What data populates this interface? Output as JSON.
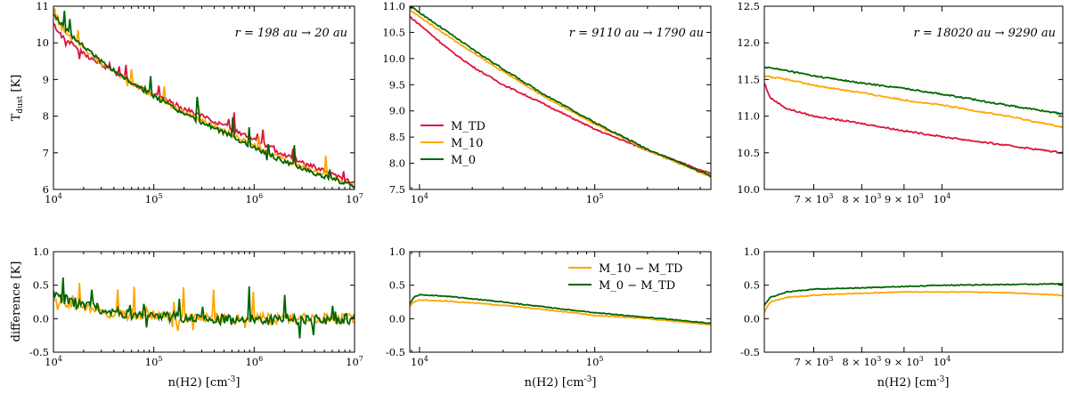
{
  "figure": {
    "y_label_top": "T_dust [K]",
    "y_label_bottom": "difference [K]",
    "x_label": "n(H2) [cm^-3]",
    "colors": {
      "M_TD": "#dc143c",
      "M_10": "#ffa500",
      "M_0": "#006400"
    }
  },
  "chart_data": [
    {
      "id": "top-left",
      "type": "line",
      "xscale": "log",
      "xlim": [
        10000,
        10000000
      ],
      "ylim": [
        6,
        11
      ],
      "xticks": [
        {
          "v": 10000,
          "label": "10^4"
        },
        {
          "v": 100000,
          "label": "10^5"
        },
        {
          "v": 1000000,
          "label": "10^6"
        },
        {
          "v": 10000000,
          "label": "10^7"
        }
      ],
      "yticks": [
        6,
        7,
        8,
        9,
        10,
        11
      ],
      "annotation": "r = 198 au → 20 au",
      "series": [
        {
          "name": "M_TD",
          "color": "#dc143c",
          "x": [
            10000,
            12000,
            15000,
            20000,
            30000,
            50000,
            80000,
            100000,
            200000,
            500000,
            1000000,
            2000000,
            5000000,
            10000000
          ],
          "y": [
            10.5,
            10.2,
            10.0,
            9.7,
            9.4,
            9.05,
            8.75,
            8.6,
            8.2,
            7.75,
            7.35,
            6.95,
            6.5,
            6.15
          ]
        },
        {
          "name": "M_10",
          "color": "#ffa500",
          "x": [
            10000,
            12000,
            15000,
            20000,
            30000,
            50000,
            80000,
            100000,
            200000,
            500000,
            1000000,
            2000000,
            5000000,
            10000000
          ],
          "y": [
            10.7,
            10.4,
            10.15,
            9.85,
            9.45,
            9.05,
            8.7,
            8.55,
            8.1,
            7.6,
            7.2,
            6.8,
            6.4,
            6.1
          ]
        },
        {
          "name": "M_0",
          "color": "#006400",
          "x": [
            10000,
            12000,
            15000,
            20000,
            30000,
            50000,
            80000,
            100000,
            200000,
            500000,
            1000000,
            2000000,
            5000000,
            10000000
          ],
          "y": [
            10.8,
            10.5,
            10.2,
            9.9,
            9.5,
            9.05,
            8.7,
            8.55,
            8.05,
            7.55,
            7.15,
            6.75,
            6.35,
            6.1
          ]
        }
      ]
    },
    {
      "id": "top-middle",
      "type": "line",
      "xscale": "log",
      "xlim": [
        8800,
        460000
      ],
      "ylim": [
        7.5,
        11
      ],
      "xticks": [
        {
          "v": 10000,
          "label": "10^4"
        },
        {
          "v": 100000,
          "label": "10^5"
        }
      ],
      "yticks": [
        7.5,
        8.0,
        8.5,
        9.0,
        9.5,
        10.0,
        10.5,
        11.0
      ],
      "annotation": "r = 9110 au → 1790 au",
      "legend": {
        "position": "lower-left",
        "entries": [
          "M_TD",
          "M_10",
          "M_0"
        ]
      },
      "series": [
        {
          "name": "M_TD",
          "color": "#dc143c",
          "x": [
            8800,
            10000,
            15000,
            20000,
            30000,
            50000,
            100000,
            200000,
            460000
          ],
          "y": [
            10.8,
            10.65,
            10.15,
            9.85,
            9.5,
            9.15,
            8.65,
            8.25,
            7.8
          ]
        },
        {
          "name": "M_10",
          "color": "#ffa500",
          "x": [
            8800,
            10000,
            15000,
            20000,
            30000,
            50000,
            100000,
            200000,
            460000
          ],
          "y": [
            10.93,
            10.8,
            10.4,
            10.12,
            9.75,
            9.3,
            8.75,
            8.25,
            7.74
          ]
        },
        {
          "name": "M_0",
          "color": "#006400",
          "x": [
            8800,
            10000,
            15000,
            20000,
            30000,
            50000,
            100000,
            200000,
            460000
          ],
          "y": [
            11.0,
            10.88,
            10.47,
            10.18,
            9.8,
            9.34,
            8.78,
            8.27,
            7.76
          ]
        }
      ]
    },
    {
      "id": "top-right",
      "type": "line",
      "xscale": "log",
      "xlim": [
        6100,
        14000
      ],
      "ylim": [
        10,
        12.5
      ],
      "xticks": [
        {
          "v": 7000,
          "label": "7 × 10^3"
        },
        {
          "v": 8000,
          "label": "8 × 10^3"
        },
        {
          "v": 9000,
          "label": "9 × 10^3"
        },
        {
          "v": 10000,
          "label": "10^4"
        }
      ],
      "yticks": [
        10.0,
        10.5,
        11.0,
        11.5,
        12.0,
        12.5
      ],
      "annotation": "r = 18020 au → 9290 au",
      "series": [
        {
          "name": "M_TD",
          "color": "#dc143c",
          "x": [
            6100,
            6200,
            6500,
            7000,
            8000,
            9000,
            10000,
            12000,
            14000
          ],
          "y": [
            11.45,
            11.25,
            11.1,
            11.0,
            10.9,
            10.8,
            10.72,
            10.6,
            10.5
          ]
        },
        {
          "name": "M_10",
          "color": "#ffa500",
          "x": [
            6100,
            6500,
            7000,
            8000,
            9000,
            10000,
            12000,
            14000
          ],
          "y": [
            11.55,
            11.5,
            11.42,
            11.32,
            11.22,
            11.15,
            11.0,
            10.85
          ]
        },
        {
          "name": "M_0",
          "color": "#006400",
          "x": [
            6100,
            6500,
            7000,
            8000,
            9000,
            10000,
            12000,
            14000
          ],
          "y": [
            11.67,
            11.62,
            11.55,
            11.45,
            11.38,
            11.3,
            11.15,
            11.03
          ]
        }
      ]
    },
    {
      "id": "bottom-left",
      "type": "line",
      "xscale": "log",
      "xlim": [
        10000,
        10000000
      ],
      "ylim": [
        -0.5,
        1.0
      ],
      "xticks": [
        {
          "v": 10000,
          "label": "10^4"
        },
        {
          "v": 100000,
          "label": "10^5"
        },
        {
          "v": 1000000,
          "label": "10^6"
        },
        {
          "v": 10000000,
          "label": "10^7"
        }
      ],
      "yticks": [
        -0.5,
        0.0,
        0.5,
        1.0
      ],
      "series": [
        {
          "name": "M_10 − M_TD",
          "color": "#ffa500",
          "x": [
            10000,
            20000,
            50000,
            100000,
            300000,
            1000000,
            3000000,
            10000000
          ],
          "y": [
            0.3,
            0.15,
            0.05,
            0.05,
            0.0,
            0.0,
            0.0,
            0.0
          ]
        },
        {
          "name": "M_0 − M_TD",
          "color": "#006400",
          "x": [
            10000,
            20000,
            50000,
            100000,
            300000,
            1000000,
            3000000,
            10000000
          ],
          "y": [
            0.35,
            0.2,
            0.08,
            0.05,
            0.0,
            -0.02,
            -0.03,
            0.0
          ]
        }
      ]
    },
    {
      "id": "bottom-middle",
      "type": "line",
      "xscale": "log",
      "xlim": [
        8800,
        460000
      ],
      "ylim": [
        -0.5,
        1.0
      ],
      "xticks": [
        {
          "v": 10000,
          "label": "10^4"
        },
        {
          "v": 100000,
          "label": "10^5"
        }
      ],
      "yticks": [
        -0.5,
        0.0,
        0.5,
        1.0
      ],
      "legend": {
        "position": "upper-right",
        "entries": [
          "M_10 − M_TD",
          "M_0 − M_TD"
        ]
      },
      "series": [
        {
          "name": "M_10 − M_TD",
          "color": "#ffa500",
          "x": [
            8800,
            9300,
            10000,
            15000,
            30000,
            50000,
            100000,
            200000,
            460000
          ],
          "y": [
            0.18,
            0.25,
            0.28,
            0.26,
            0.2,
            0.14,
            0.05,
            0.0,
            -0.09
          ]
        },
        {
          "name": "M_0 − M_TD",
          "color": "#006400",
          "x": [
            8800,
            9300,
            10000,
            15000,
            30000,
            50000,
            100000,
            200000,
            460000
          ],
          "y": [
            0.22,
            0.32,
            0.36,
            0.33,
            0.25,
            0.18,
            0.09,
            0.02,
            -0.07
          ]
        }
      ]
    },
    {
      "id": "bottom-right",
      "type": "line",
      "xscale": "log",
      "xlim": [
        6100,
        14000
      ],
      "ylim": [
        -0.5,
        1.0
      ],
      "xticks": [
        {
          "v": 7000,
          "label": "7 × 10^3"
        },
        {
          "v": 8000,
          "label": "8 × 10^3"
        },
        {
          "v": 9000,
          "label": "9 × 10^3"
        },
        {
          "v": 10000,
          "label": "10^4"
        }
      ],
      "yticks": [
        -0.5,
        0.0,
        0.5,
        1.0
      ],
      "series": [
        {
          "name": "M_10 − M_TD",
          "color": "#ffa500",
          "x": [
            6100,
            6200,
            6500,
            7000,
            8000,
            9000,
            10000,
            12000,
            14000
          ],
          "y": [
            0.1,
            0.25,
            0.32,
            0.35,
            0.38,
            0.4,
            0.4,
            0.39,
            0.35
          ]
        },
        {
          "name": "M_0 − M_TD",
          "color": "#006400",
          "x": [
            6100,
            6200,
            6500,
            7000,
            8000,
            9000,
            10000,
            12000,
            14000
          ],
          "y": [
            0.2,
            0.32,
            0.4,
            0.44,
            0.46,
            0.48,
            0.5,
            0.51,
            0.52
          ]
        }
      ]
    }
  ]
}
